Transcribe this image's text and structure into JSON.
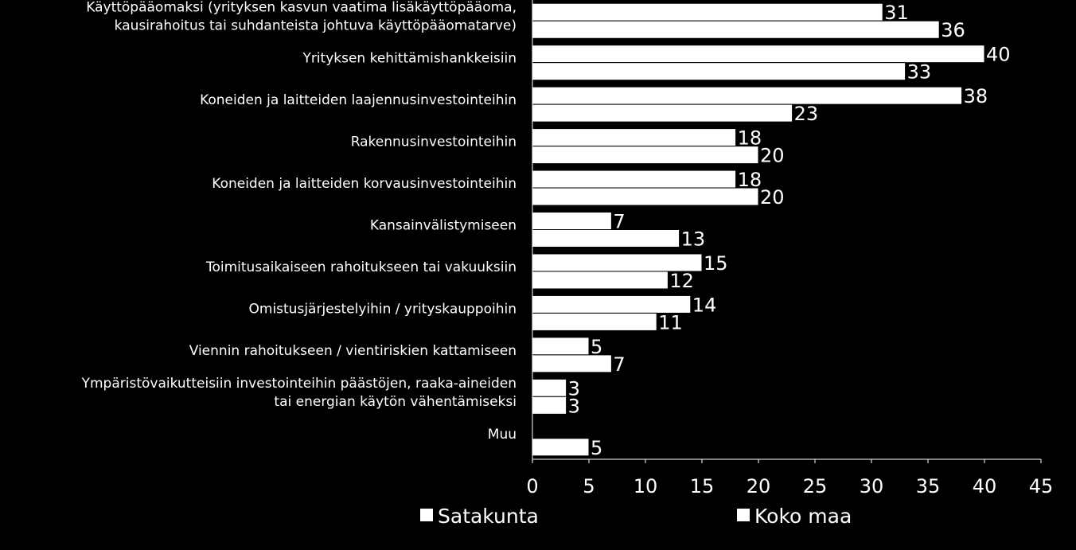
{
  "chart_data": {
    "type": "bar",
    "orientation": "horizontal",
    "categories": [
      [
        "Käyttöpääomaksi (yrityksen kasvun vaatima lisäkäyttöpääoma,",
        "kausirahoitus tai suhdanteista johtuva käyttöpääomatarve)"
      ],
      [
        "Yrityksen kehittämishankkeisiin"
      ],
      [
        "Koneiden ja laitteiden laajennusinvestointeihin"
      ],
      [
        "Rakennusinvestointeihin"
      ],
      [
        "Koneiden ja laitteiden korvausinvestointeihin"
      ],
      [
        "Kansainvälistymiseen"
      ],
      [
        "Toimitusaikaiseen rahoitukseen tai vakuuksiin"
      ],
      [
        "Omistusjärjestelyihin / yrityskauppoihin"
      ],
      [
        "Viennin rahoitukseen / vientiriskien kattamiseen"
      ],
      [
        "Ympäristövaikutteisiin investointeihin päästöjen, raaka-aineiden",
        "tai energian käytön vähentämiseksi"
      ],
      [
        "Muu"
      ]
    ],
    "series": [
      {
        "name": "Satakunta",
        "color": "#ffffff",
        "values": [
          31,
          40,
          38,
          18,
          18,
          7,
          15,
          14,
          5,
          3,
          null
        ]
      },
      {
        "name": "Koko maa",
        "color": "#ffffff",
        "values": [
          36,
          33,
          23,
          20,
          20,
          13,
          12,
          11,
          7,
          3,
          5
        ]
      }
    ],
    "xlim": [
      0,
      45
    ],
    "xticks": [
      0,
      5,
      10,
      15,
      20,
      25,
      30,
      35,
      40,
      45
    ],
    "grid": false,
    "legend_position": "bottom",
    "background": "#000000",
    "bar_border": "#000000"
  }
}
